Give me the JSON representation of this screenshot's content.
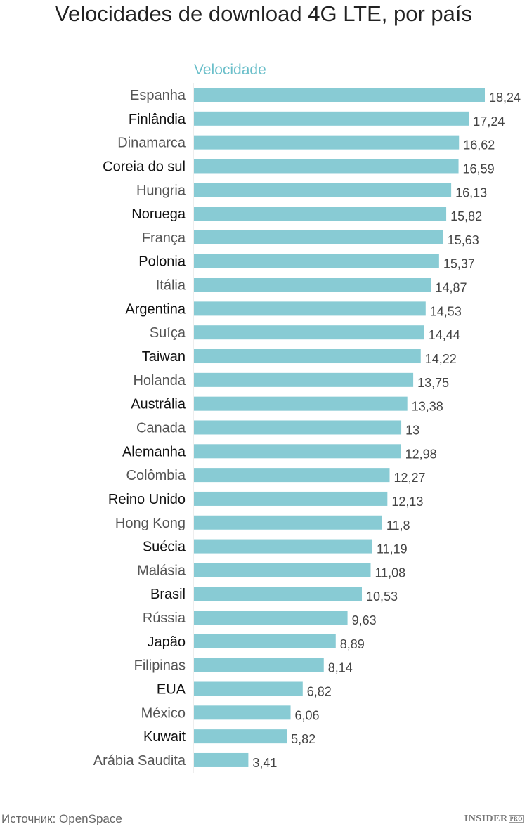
{
  "chart_data": {
    "type": "bar",
    "orientation": "horizontal",
    "title": "Velocidades de download 4G LTE, por país",
    "series": [
      {
        "name": "Velocidade",
        "color": "#88cbd4",
        "values": [
          18.24,
          17.24,
          16.62,
          16.59,
          16.13,
          15.82,
          15.63,
          15.37,
          14.87,
          14.53,
          14.44,
          14.22,
          13.75,
          13.38,
          13,
          12.98,
          12.27,
          12.13,
          11.8,
          11.19,
          11.08,
          10.53,
          9.63,
          8.89,
          8.14,
          6.82,
          6.06,
          5.82,
          3.41
        ]
      }
    ],
    "categories": [
      "Espanha",
      "Finlândia",
      "Dinamarca",
      "Coreia do sul",
      "Hungria",
      "Noruega",
      "França",
      "Polonia",
      "Itália",
      "Argentina",
      "Suíça",
      "Taiwan",
      "Holanda",
      "Austrália",
      "Canada",
      "Alemanha",
      "Colômbia",
      "Reino Unido",
      "Hong Kong",
      "Suécia",
      "Malásia",
      "Brasil",
      "Rússia",
      "Japão",
      "Filipinas",
      "EUA",
      "México",
      "Kuwait",
      "Arábia Saudita"
    ],
    "data_labels": [
      "18,24",
      "17,24",
      "16,62",
      "16,59",
      "16,13",
      "15,82",
      "15,63",
      "15,37",
      "14,87",
      "14,53",
      "14,44",
      "14,22",
      "13,75",
      "13,38",
      "13",
      "12,98",
      "12,27",
      "12,13",
      "11,8",
      "11,19",
      "11,08",
      "10,53",
      "9,63",
      "8,89",
      "8,14",
      "6,82",
      "6,06",
      "5,82",
      "3,41"
    ],
    "xlim": [
      0,
      18.24
    ],
    "grid": false,
    "legend": "top"
  },
  "footer": {
    "source": "Источник: OpenSpace",
    "logo": "INSIDER",
    "logo_badge": "PRO"
  }
}
